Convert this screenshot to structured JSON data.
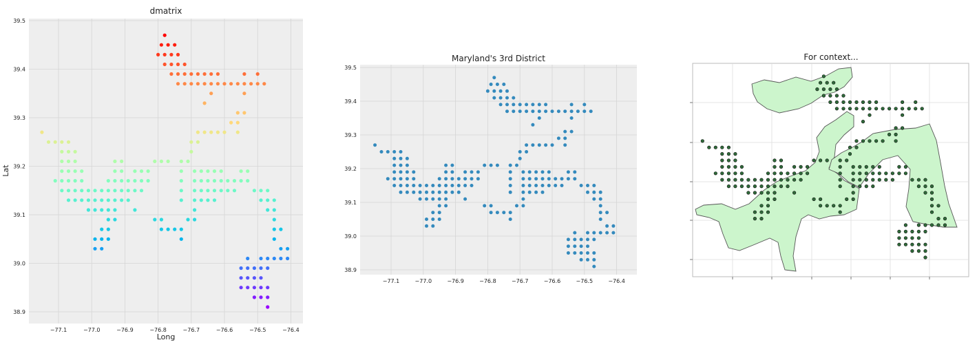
{
  "chart_data": [
    {
      "type": "scatter",
      "title": "dmatrix",
      "xlabel": "Long",
      "ylabel": "Lat",
      "xlim": [
        -77.18,
        -76.38
      ],
      "ylim": [
        38.88,
        39.51
      ],
      "xticks": [
        -77.1,
        -77.0,
        -76.9,
        -76.8,
        -76.7,
        -76.6,
        -76.5,
        -76.4
      ],
      "xtick_labels": [
        "−77.1",
        "−77.0",
        "−76.9",
        "−76.8",
        "−76.7",
        "−76.6",
        "−76.5",
        "−76.4"
      ],
      "yticks": [
        38.9,
        39.0,
        39.1,
        39.2,
        39.3,
        39.4,
        39.5
      ],
      "ytick_labels": [
        "38.9",
        "39.0",
        "39.1",
        "39.2",
        "39.3",
        "39.4",
        "39.5"
      ],
      "grid": true,
      "color_scale": "rainbow",
      "color_by": "row",
      "point_color": "rainbow",
      "points_ref": "points"
    },
    {
      "type": "scatter",
      "title": "Maryland's 3rd District",
      "xlabel": "",
      "ylabel": "",
      "xlim": [
        -77.18,
        -76.38
      ],
      "ylim": [
        38.88,
        39.51
      ],
      "xticks": [
        -77.1,
        -77.0,
        -76.9,
        -76.8,
        -76.7,
        -76.6,
        -76.5,
        -76.4
      ],
      "xtick_labels": [
        "−77.1",
        "−77.0",
        "−76.9",
        "−76.8",
        "−76.7",
        "−76.6",
        "−76.5",
        "−76.4"
      ],
      "yticks": [
        38.9,
        39.0,
        39.1,
        39.2,
        39.3,
        39.4,
        39.5
      ],
      "ytick_labels": [
        "38.9",
        "39.0",
        "39.1",
        "39.2",
        "39.3",
        "39.4",
        "39.5"
      ],
      "grid": true,
      "point_color": "#348abd",
      "points_ref": "points"
    },
    {
      "type": "scatter",
      "title": "For context...",
      "xlabel": "",
      "ylabel": "",
      "grid": true,
      "tick_labels": false,
      "district_fill": "#ccf5cc",
      "district_stroke": "#555555",
      "point_color": "#2f6b3a",
      "points_ref": "points"
    }
  ],
  "points": [
    [
      -76.78,
      39.47
    ],
    [
      -76.79,
      39.45
    ],
    [
      -76.77,
      39.45
    ],
    [
      -76.75,
      39.45
    ],
    [
      -76.8,
      39.43
    ],
    [
      -76.78,
      39.43
    ],
    [
      -76.76,
      39.43
    ],
    [
      -76.74,
      39.43
    ],
    [
      -76.78,
      39.41
    ],
    [
      -76.76,
      39.41
    ],
    [
      -76.74,
      39.41
    ],
    [
      -76.72,
      39.41
    ],
    [
      -76.76,
      39.39
    ],
    [
      -76.74,
      39.39
    ],
    [
      -76.72,
      39.39
    ],
    [
      -76.7,
      39.39
    ],
    [
      -76.68,
      39.39
    ],
    [
      -76.66,
      39.39
    ],
    [
      -76.64,
      39.39
    ],
    [
      -76.62,
      39.39
    ],
    [
      -76.54,
      39.39
    ],
    [
      -76.5,
      39.39
    ],
    [
      -76.74,
      39.37
    ],
    [
      -76.72,
      39.37
    ],
    [
      -76.7,
      39.37
    ],
    [
      -76.68,
      39.37
    ],
    [
      -76.66,
      39.37
    ],
    [
      -76.64,
      39.37
    ],
    [
      -76.62,
      39.37
    ],
    [
      -76.6,
      39.37
    ],
    [
      -76.58,
      39.37
    ],
    [
      -76.56,
      39.37
    ],
    [
      -76.54,
      39.37
    ],
    [
      -76.52,
      39.37
    ],
    [
      -76.5,
      39.37
    ],
    [
      -76.48,
      39.37
    ],
    [
      -76.64,
      39.35
    ],
    [
      -76.54,
      39.35
    ],
    [
      -76.66,
      39.33
    ],
    [
      -76.56,
      39.31
    ],
    [
      -76.54,
      39.31
    ],
    [
      -76.58,
      39.29
    ],
    [
      -76.56,
      39.29
    ],
    [
      -76.68,
      39.27
    ],
    [
      -76.66,
      39.27
    ],
    [
      -76.64,
      39.27
    ],
    [
      -76.62,
      39.27
    ],
    [
      -76.6,
      39.27
    ],
    [
      -76.56,
      39.27
    ],
    [
      -77.15,
      39.27
    ],
    [
      -77.13,
      39.25
    ],
    [
      -77.11,
      39.25
    ],
    [
      -77.09,
      39.25
    ],
    [
      -77.07,
      39.25
    ],
    [
      -76.7,
      39.25
    ],
    [
      -76.68,
      39.25
    ],
    [
      -77.09,
      39.23
    ],
    [
      -77.07,
      39.23
    ],
    [
      -77.05,
      39.23
    ],
    [
      -76.7,
      39.23
    ],
    [
      -77.09,
      39.21
    ],
    [
      -77.07,
      39.21
    ],
    [
      -77.05,
      39.21
    ],
    [
      -76.93,
      39.21
    ],
    [
      -76.91,
      39.21
    ],
    [
      -76.81,
      39.21
    ],
    [
      -76.79,
      39.21
    ],
    [
      -76.77,
      39.21
    ],
    [
      -76.73,
      39.21
    ],
    [
      -76.71,
      39.21
    ],
    [
      -77.09,
      39.19
    ],
    [
      -77.07,
      39.19
    ],
    [
      -77.05,
      39.19
    ],
    [
      -77.03,
      39.19
    ],
    [
      -76.93,
      39.19
    ],
    [
      -76.91,
      39.19
    ],
    [
      -76.87,
      39.19
    ],
    [
      -76.85,
      39.19
    ],
    [
      -76.83,
      39.19
    ],
    [
      -76.73,
      39.19
    ],
    [
      -76.69,
      39.19
    ],
    [
      -76.67,
      39.19
    ],
    [
      -76.65,
      39.19
    ],
    [
      -76.63,
      39.19
    ],
    [
      -76.61,
      39.19
    ],
    [
      -76.55,
      39.19
    ],
    [
      -76.53,
      39.19
    ],
    [
      -77.11,
      39.17
    ],
    [
      -77.09,
      39.17
    ],
    [
      -77.07,
      39.17
    ],
    [
      -77.05,
      39.17
    ],
    [
      -77.03,
      39.17
    ],
    [
      -76.95,
      39.17
    ],
    [
      -76.93,
      39.17
    ],
    [
      -76.91,
      39.17
    ],
    [
      -76.89,
      39.17
    ],
    [
      -76.87,
      39.17
    ],
    [
      -76.85,
      39.17
    ],
    [
      -76.83,
      39.17
    ],
    [
      -76.73,
      39.17
    ],
    [
      -76.69,
      39.17
    ],
    [
      -76.67,
      39.17
    ],
    [
      -76.65,
      39.17
    ],
    [
      -76.63,
      39.17
    ],
    [
      -76.61,
      39.17
    ],
    [
      -76.59,
      39.17
    ],
    [
      -76.57,
      39.17
    ],
    [
      -76.55,
      39.17
    ],
    [
      -76.53,
      39.17
    ],
    [
      -77.09,
      39.15
    ],
    [
      -77.07,
      39.15
    ],
    [
      -77.05,
      39.15
    ],
    [
      -77.03,
      39.15
    ],
    [
      -77.01,
      39.15
    ],
    [
      -76.99,
      39.15
    ],
    [
      -76.97,
      39.15
    ],
    [
      -76.95,
      39.15
    ],
    [
      -76.93,
      39.15
    ],
    [
      -76.91,
      39.15
    ],
    [
      -76.89,
      39.15
    ],
    [
      -76.87,
      39.15
    ],
    [
      -76.85,
      39.15
    ],
    [
      -76.73,
      39.15
    ],
    [
      -76.69,
      39.15
    ],
    [
      -76.67,
      39.15
    ],
    [
      -76.65,
      39.15
    ],
    [
      -76.63,
      39.15
    ],
    [
      -76.61,
      39.15
    ],
    [
      -76.59,
      39.15
    ],
    [
      -76.57,
      39.15
    ],
    [
      -76.51,
      39.15
    ],
    [
      -76.49,
      39.15
    ],
    [
      -76.47,
      39.15
    ],
    [
      -77.07,
      39.13
    ],
    [
      -77.05,
      39.13
    ],
    [
      -77.03,
      39.13
    ],
    [
      -77.01,
      39.13
    ],
    [
      -76.99,
      39.13
    ],
    [
      -76.97,
      39.13
    ],
    [
      -76.95,
      39.13
    ],
    [
      -76.93,
      39.13
    ],
    [
      -76.91,
      39.13
    ],
    [
      -76.89,
      39.13
    ],
    [
      -76.73,
      39.13
    ],
    [
      -76.69,
      39.13
    ],
    [
      -76.67,
      39.13
    ],
    [
      -76.65,
      39.13
    ],
    [
      -76.63,
      39.13
    ],
    [
      -76.49,
      39.13
    ],
    [
      -76.47,
      39.13
    ],
    [
      -76.45,
      39.13
    ],
    [
      -77.01,
      39.11
    ],
    [
      -76.99,
      39.11
    ],
    [
      -76.97,
      39.11
    ],
    [
      -76.95,
      39.11
    ],
    [
      -76.93,
      39.11
    ],
    [
      -76.87,
      39.11
    ],
    [
      -76.69,
      39.11
    ],
    [
      -76.47,
      39.11
    ],
    [
      -76.45,
      39.11
    ],
    [
      -76.95,
      39.09
    ],
    [
      -76.93,
      39.09
    ],
    [
      -76.81,
      39.09
    ],
    [
      -76.79,
      39.09
    ],
    [
      -76.71,
      39.09
    ],
    [
      -76.69,
      39.09
    ],
    [
      -76.45,
      39.09
    ],
    [
      -76.97,
      39.07
    ],
    [
      -76.95,
      39.07
    ],
    [
      -76.79,
      39.07
    ],
    [
      -76.77,
      39.07
    ],
    [
      -76.75,
      39.07
    ],
    [
      -76.73,
      39.07
    ],
    [
      -76.45,
      39.07
    ],
    [
      -76.43,
      39.07
    ],
    [
      -76.99,
      39.05
    ],
    [
      -76.97,
      39.05
    ],
    [
      -76.95,
      39.05
    ],
    [
      -76.73,
      39.05
    ],
    [
      -76.45,
      39.05
    ],
    [
      -76.99,
      39.03
    ],
    [
      -76.97,
      39.03
    ],
    [
      -76.43,
      39.03
    ],
    [
      -76.41,
      39.03
    ],
    [
      -76.53,
      39.01
    ],
    [
      -76.49,
      39.01
    ],
    [
      -76.47,
      39.01
    ],
    [
      -76.45,
      39.01
    ],
    [
      -76.43,
      39.01
    ],
    [
      -76.41,
      39.01
    ],
    [
      -76.55,
      38.99
    ],
    [
      -76.53,
      38.99
    ],
    [
      -76.51,
      38.99
    ],
    [
      -76.49,
      38.99
    ],
    [
      -76.47,
      38.99
    ],
    [
      -76.55,
      38.97
    ],
    [
      -76.53,
      38.97
    ],
    [
      -76.51,
      38.97
    ],
    [
      -76.49,
      38.97
    ],
    [
      -76.55,
      38.95
    ],
    [
      -76.53,
      38.95
    ],
    [
      -76.51,
      38.95
    ],
    [
      -76.49,
      38.95
    ],
    [
      -76.47,
      38.95
    ],
    [
      -76.51,
      38.93
    ],
    [
      -76.49,
      38.93
    ],
    [
      -76.47,
      38.93
    ],
    [
      -76.47,
      38.91
    ]
  ]
}
